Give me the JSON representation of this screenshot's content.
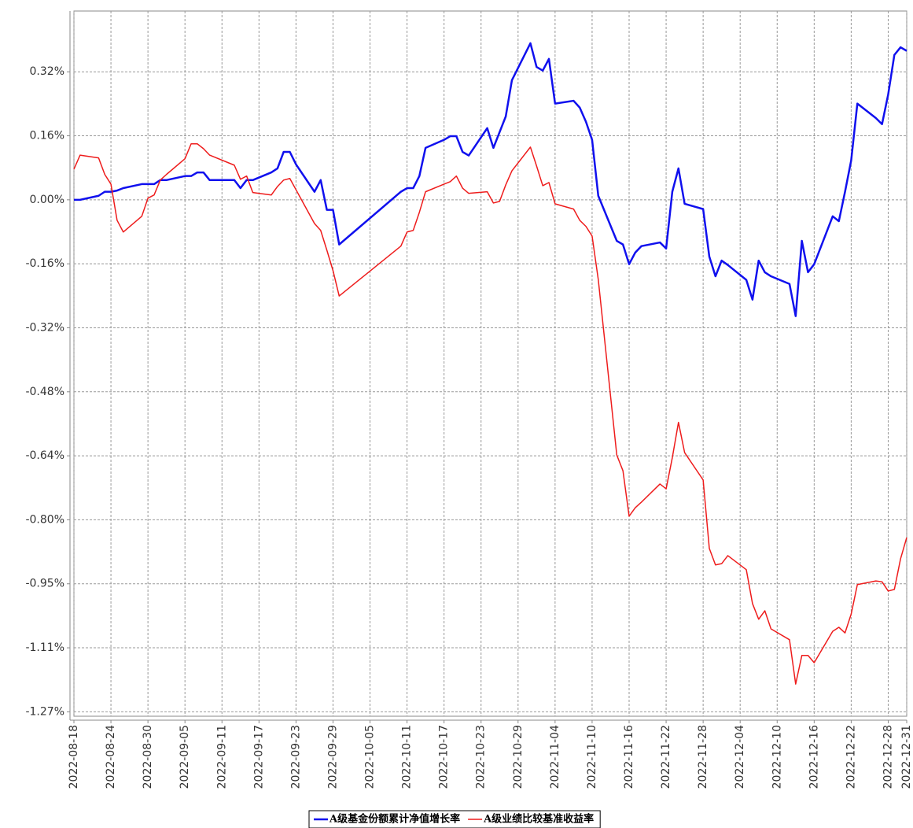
{
  "chart_data": {
    "type": "line",
    "x": [
      "2022-08-18",
      "2022-08-19",
      "2022-08-22",
      "2022-08-23",
      "2022-08-24",
      "2022-08-25",
      "2022-08-26",
      "2022-08-29",
      "2022-08-30",
      "2022-08-31",
      "2022-09-01",
      "2022-09-02",
      "2022-09-05",
      "2022-09-06",
      "2022-09-07",
      "2022-09-08",
      "2022-09-09",
      "2022-09-13",
      "2022-09-14",
      "2022-09-15",
      "2022-09-16",
      "2022-09-19",
      "2022-09-20",
      "2022-09-21",
      "2022-09-22",
      "2022-09-23",
      "2022-09-26",
      "2022-09-27",
      "2022-09-28",
      "2022-09-29",
      "2022-09-30",
      "2022-10-10",
      "2022-10-11",
      "2022-10-12",
      "2022-10-13",
      "2022-10-14",
      "2022-10-17",
      "2022-10-18",
      "2022-10-19",
      "2022-10-20",
      "2022-10-21",
      "2022-10-24",
      "2022-10-25",
      "2022-10-26",
      "2022-10-27",
      "2022-10-28",
      "2022-10-31",
      "2022-11-01",
      "2022-11-02",
      "2022-11-03",
      "2022-11-04",
      "2022-11-07",
      "2022-11-08",
      "2022-11-09",
      "2022-11-10",
      "2022-11-11",
      "2022-11-14",
      "2022-11-15",
      "2022-11-16",
      "2022-11-17",
      "2022-11-18",
      "2022-11-21",
      "2022-11-22",
      "2022-11-23",
      "2022-11-24",
      "2022-11-25",
      "2022-11-28",
      "2022-11-29",
      "2022-11-30",
      "2022-12-01",
      "2022-12-02",
      "2022-12-05",
      "2022-12-06",
      "2022-12-07",
      "2022-12-08",
      "2022-12-09",
      "2022-12-12",
      "2022-12-13",
      "2022-12-14",
      "2022-12-15",
      "2022-12-16",
      "2022-12-19",
      "2022-12-20",
      "2022-12-21",
      "2022-12-22",
      "2022-12-23",
      "2022-12-26",
      "2022-12-27",
      "2022-12-28",
      "2022-12-29",
      "2022-12-30",
      "2022-12-31"
    ],
    "series": [
      {
        "name": "A级基金份额累计净值增长率",
        "color": "#1010ee",
        "width": 2.5,
        "values": [
          0.0,
          0.0,
          0.01,
          0.02,
          0.02,
          0.023,
          0.029,
          0.039,
          0.039,
          0.039,
          0.049,
          0.049,
          0.059,
          0.059,
          0.068,
          0.068,
          0.049,
          0.049,
          0.029,
          0.049,
          0.049,
          0.068,
          0.078,
          0.119,
          0.119,
          0.088,
          0.02,
          0.049,
          -0.025,
          -0.025,
          -0.111,
          0.02,
          0.029,
          0.029,
          0.059,
          0.129,
          0.149,
          0.158,
          0.158,
          0.119,
          0.11,
          0.178,
          0.129,
          0.168,
          0.207,
          0.297,
          0.389,
          0.33,
          0.321,
          0.35,
          0.239,
          0.246,
          0.229,
          0.194,
          0.149,
          0.01,
          -0.102,
          -0.111,
          -0.16,
          -0.131,
          -0.115,
          -0.106,
          -0.121,
          0.02,
          0.078,
          -0.01,
          -0.023,
          -0.141,
          -0.19,
          -0.151,
          -0.162,
          -0.199,
          -0.248,
          -0.151,
          -0.18,
          -0.19,
          -0.209,
          -0.289,
          -0.102,
          -0.18,
          -0.16,
          -0.041,
          -0.053,
          0.02,
          0.098,
          0.239,
          0.203,
          0.188,
          0.262,
          0.36,
          0.379,
          0.37
        ]
      },
      {
        "name": "A级业绩比较基准收益率",
        "color": "#ee1c1c",
        "width": 1.5,
        "values": [
          0.076,
          0.111,
          0.104,
          0.063,
          0.039,
          -0.051,
          -0.08,
          -0.041,
          0.004,
          0.012,
          0.049,
          0.063,
          0.102,
          0.139,
          0.139,
          0.127,
          0.111,
          0.086,
          0.051,
          0.059,
          0.018,
          0.012,
          0.033,
          0.049,
          0.053,
          0.025,
          -0.059,
          -0.076,
          -0.125,
          -0.176,
          -0.239,
          -0.115,
          -0.08,
          -0.076,
          -0.031,
          0.02,
          0.039,
          0.045,
          0.059,
          0.029,
          0.016,
          0.02,
          -0.008,
          -0.004,
          0.037,
          0.072,
          0.131,
          0.084,
          0.035,
          0.043,
          -0.01,
          -0.023,
          -0.051,
          -0.066,
          -0.09,
          -0.198,
          -0.634,
          -0.673,
          -0.786,
          -0.765,
          -0.751,
          -0.706,
          -0.718,
          -0.641,
          -0.553,
          -0.628,
          -0.696,
          -0.866,
          -0.907,
          -0.904,
          -0.884,
          -0.919,
          -1.003,
          -1.042,
          -1.021,
          -1.066,
          -1.093,
          -1.203,
          -1.132,
          -1.132,
          -1.15,
          -1.072,
          -1.062,
          -1.076,
          -1.029,
          -0.956,
          -0.947,
          -0.949,
          -0.972,
          -0.968,
          -0.892,
          -0.839
        ]
      }
    ],
    "xlim": [
      "2022-08-18",
      "2022-12-31"
    ],
    "xticks": [
      "2022-08-18",
      "2022-08-24",
      "2022-08-30",
      "2022-09-05",
      "2022-09-11",
      "2022-09-17",
      "2022-09-23",
      "2022-09-29",
      "2022-10-05",
      "2022-10-11",
      "2022-10-17",
      "2022-10-23",
      "2022-10-29",
      "2022-11-04",
      "2022-11-10",
      "2022-11-16",
      "2022-11-22",
      "2022-11-28",
      "2022-12-04",
      "2022-12-10",
      "2022-12-16",
      "2022-12-22",
      "2022-12-28",
      "2022-12-31"
    ],
    "ylim": [
      -1.283,
      0.469
    ],
    "yticks": [
      {
        "value": 0.318,
        "label": "0.32%"
      },
      {
        "value": 0.159,
        "label": "0.16%"
      },
      {
        "value": 0,
        "label": "0.00%"
      },
      {
        "value": -0.159,
        "label": "-0.16%"
      },
      {
        "value": -0.318,
        "label": "-0.32%"
      },
      {
        "value": -0.477,
        "label": "-0.48%"
      },
      {
        "value": -0.636,
        "label": "-0.64%"
      },
      {
        "value": -0.795,
        "label": "-0.80%"
      },
      {
        "value": -0.954,
        "label": "-0.95%"
      },
      {
        "value": -1.113,
        "label": "-1.11%"
      },
      {
        "value": -1.272,
        "label": "-1.27%"
      }
    ],
    "grid": true,
    "legend": "bottom"
  }
}
